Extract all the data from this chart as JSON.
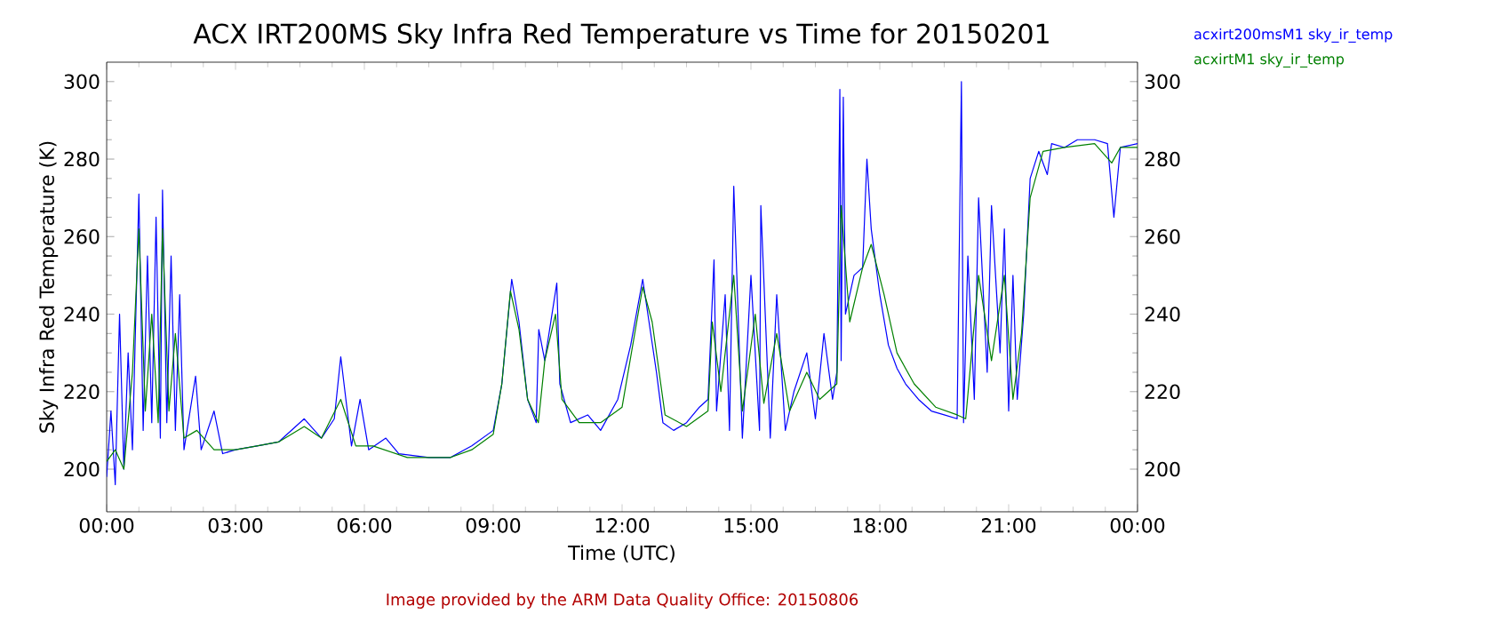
{
  "chart_data": {
    "type": "line",
    "title": "ACX IRT200MS Sky Infra Red Temperature vs Time for 20150201",
    "xlabel": "Time (UTC)",
    "ylabel": "Sky Infra Red Temperature (K)",
    "annotations": [
      "Image provided by the ARM Data Quality Office: 20150806"
    ],
    "xlim": [
      0,
      24
    ],
    "ylim": [
      189,
      305
    ],
    "y2lim": [
      189,
      305
    ],
    "xticks": [
      {
        "value": 0,
        "label": "00:00"
      },
      {
        "value": 3,
        "label": "03:00"
      },
      {
        "value": 6,
        "label": "06:00"
      },
      {
        "value": 9,
        "label": "09:00"
      },
      {
        "value": 12,
        "label": "12:00"
      },
      {
        "value": 15,
        "label": "15:00"
      },
      {
        "value": 18,
        "label": "18:00"
      },
      {
        "value": 21,
        "label": "21:00"
      },
      {
        "value": 24,
        "label": "00:00"
      }
    ],
    "yticks": [
      200,
      220,
      240,
      260,
      280,
      300
    ],
    "y2ticks": [
      200,
      220,
      240,
      260,
      280,
      300
    ],
    "legend": "top right",
    "marker": "none",
    "line_style": "solid",
    "grid": false,
    "series": [
      {
        "name": "acxirt200msM1 sky_ir_temp",
        "color": "#0000ff",
        "x": [
          0,
          0.1,
          0.2,
          0.3,
          0.4,
          0.5,
          0.6,
          0.75,
          0.85,
          0.95,
          1.05,
          1.15,
          1.25,
          1.3,
          1.4,
          1.5,
          1.6,
          1.7,
          1.8,
          2.07,
          2.2,
          2.5,
          2.7,
          3,
          3.5,
          4,
          4.6,
          5,
          5.3,
          5.45,
          5.7,
          5.9,
          6.1,
          6.5,
          6.8,
          7.5,
          8,
          8.5,
          9,
          9.2,
          9.43,
          9.6,
          9.8,
          10,
          10.06,
          10.2,
          10.48,
          10.55,
          10.8,
          11.2,
          11.5,
          11.9,
          12.2,
          12.48,
          12.6,
          12.8,
          12.95,
          13.2,
          13.5,
          13.8,
          14,
          14.14,
          14.2,
          14.4,
          14.5,
          14.6,
          14.8,
          15,
          15.2,
          15.23,
          15.45,
          15.6,
          15.8,
          16,
          16.3,
          16.5,
          16.7,
          16.9,
          17,
          17.07,
          17.1,
          17.15,
          17.2,
          17.4,
          17.6,
          17.7,
          17.8,
          18,
          18.2,
          18.4,
          18.6,
          18.9,
          19.2,
          19.5,
          19.8,
          19.9,
          19.95,
          20.05,
          20.2,
          20.3,
          20.5,
          20.6,
          20.8,
          20.9,
          21,
          21.1,
          21.2,
          21.35,
          21.5,
          21.7,
          21.9,
          22,
          22.3,
          22.6,
          23,
          23.3,
          23.45,
          23.6,
          24
        ],
        "values": [
          198,
          215,
          196,
          240,
          200,
          230,
          205,
          271,
          210,
          255,
          212,
          265,
          208,
          272,
          212,
          255,
          210,
          245,
          205,
          224,
          205,
          215,
          204,
          205,
          206,
          207,
          213,
          208,
          213,
          229,
          206,
          218,
          205,
          208,
          204,
          203,
          203,
          206,
          210,
          222,
          249,
          238,
          218,
          212,
          236,
          228,
          248,
          222,
          212,
          214,
          210,
          218,
          232,
          249,
          240,
          225,
          212,
          210,
          212,
          216,
          218,
          254,
          215,
          245,
          210,
          273,
          208,
          250,
          210,
          268,
          208,
          245,
          210,
          220,
          230,
          213,
          235,
          218,
          225,
          298,
          228,
          296,
          240,
          250,
          252,
          280,
          262,
          245,
          232,
          226,
          222,
          218,
          215,
          214,
          213,
          300,
          212,
          255,
          218,
          270,
          225,
          268,
          230,
          262,
          215,
          250,
          218,
          240,
          275,
          282,
          276,
          284,
          283,
          285,
          285,
          284,
          265,
          283,
          284
        ]
      },
      {
        "name": "acxirtM1 sky_ir_temp",
        "color": "#008000",
        "x": [
          0,
          0.2,
          0.4,
          0.6,
          0.75,
          0.9,
          1.05,
          1.2,
          1.3,
          1.45,
          1.6,
          1.8,
          2.1,
          2.5,
          3,
          3.5,
          4,
          4.6,
          5,
          5.45,
          5.8,
          6.2,
          7,
          8,
          8.5,
          9,
          9.2,
          9.4,
          9.6,
          9.8,
          10.05,
          10.2,
          10.45,
          10.6,
          11,
          11.5,
          12,
          12.48,
          12.7,
          13,
          13.5,
          14,
          14.1,
          14.3,
          14.6,
          14.8,
          15.1,
          15.3,
          15.6,
          15.9,
          16.3,
          16.6,
          17,
          17.1,
          17.3,
          17.6,
          17.8,
          18.1,
          18.4,
          18.8,
          19.3,
          19.8,
          20,
          20.3,
          20.6,
          20.9,
          21.1,
          21.3,
          21.5,
          21.8,
          22.3,
          23,
          23.4,
          23.6,
          24
        ],
        "values": [
          202,
          205,
          200,
          225,
          262,
          215,
          240,
          212,
          262,
          215,
          235,
          208,
          210,
          205,
          205,
          206,
          207,
          211,
          208,
          218,
          206,
          206,
          203,
          203,
          205,
          209,
          222,
          246,
          236,
          218,
          212,
          228,
          240,
          218,
          212,
          212,
          216,
          247,
          238,
          214,
          211,
          215,
          238,
          220,
          250,
          215,
          240,
          217,
          235,
          215,
          225,
          218,
          222,
          268,
          238,
          252,
          258,
          245,
          230,
          222,
          216,
          214,
          213,
          250,
          228,
          250,
          218,
          235,
          270,
          282,
          283,
          284,
          279,
          283,
          283
        ]
      }
    ]
  }
}
